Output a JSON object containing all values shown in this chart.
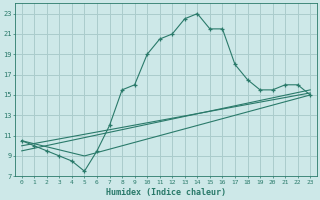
{
  "xlabel": "Humidex (Indice chaleur)",
  "ylabel": "",
  "bg_color": "#cde8e8",
  "grid_color": "#aacccc",
  "line_color": "#2a7a6a",
  "xlim": [
    -0.5,
    23.5
  ],
  "ylim": [
    7,
    24
  ],
  "xticks": [
    0,
    1,
    2,
    3,
    4,
    5,
    6,
    7,
    8,
    9,
    10,
    11,
    12,
    13,
    14,
    15,
    16,
    17,
    18,
    19,
    20,
    21,
    22,
    23
  ],
  "yticks": [
    7,
    9,
    11,
    13,
    15,
    17,
    19,
    21,
    23
  ],
  "series1_x": [
    0,
    1,
    2,
    3,
    4,
    5,
    6,
    7,
    8,
    9,
    10,
    11,
    12,
    13,
    14,
    15,
    16,
    17,
    18,
    19,
    20,
    21,
    22,
    23
  ],
  "series1_y": [
    10.5,
    10.0,
    9.5,
    9.0,
    8.5,
    7.5,
    9.5,
    12.0,
    15.5,
    16.0,
    19.0,
    20.5,
    21.0,
    22.5,
    23.0,
    21.5,
    21.5,
    18.0,
    16.5,
    15.5,
    15.5,
    16.0,
    16.0,
    15.0
  ],
  "series2_x": [
    0,
    5,
    23
  ],
  "series2_y": [
    10.5,
    9.0,
    15.0
  ],
  "series3_x": [
    0,
    23
  ],
  "series3_y": [
    10.0,
    15.2
  ],
  "series4_x": [
    0,
    23
  ],
  "series4_y": [
    9.5,
    15.5
  ]
}
